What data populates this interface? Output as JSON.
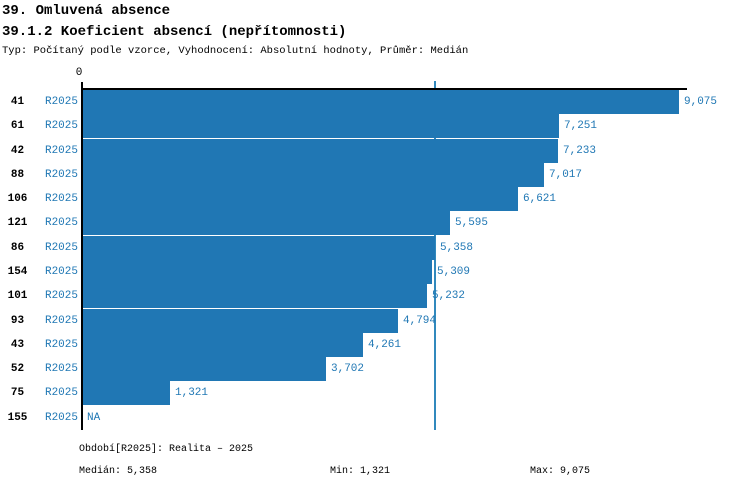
{
  "header": {
    "title_line1": "39. Omluvená absence",
    "title_line2": "39.1.2 Koeficient absencí (nepřítomnosti)",
    "subtitle": "Typ: Počítaný podle vzorce, Vyhodnocení: Absolutní hodnoty, Průměr: Medián"
  },
  "chart_data": {
    "type": "bar",
    "orientation": "horizontal",
    "origin_tick_label": "0",
    "xlim": [
      0,
      9200
    ],
    "grid": false,
    "series_label": "R2025",
    "categories": [
      "41",
      "61",
      "42",
      "88",
      "106",
      "121",
      "86",
      "154",
      "101",
      "93",
      "43",
      "52",
      "75",
      "155"
    ],
    "values": [
      9075,
      7251,
      7233,
      7017,
      6621,
      5595,
      5358,
      5309,
      5232,
      4794,
      4261,
      3702,
      1321,
      null
    ],
    "value_labels": [
      "9,075",
      "7,251",
      "7,233",
      "7,017",
      "6,621",
      "5,595",
      "5,358",
      "5,309",
      "5,232",
      "4,794",
      "4,261",
      "3,702",
      "1,321",
      "NA"
    ],
    "median_value": 5358,
    "colors": {
      "bar": "#2077b4",
      "median_line": "#3189bd",
      "value_text": "#1f77b4",
      "series_text": "#1f77b4",
      "category_text": "#000000",
      "axis": "#000000"
    }
  },
  "footer": {
    "period_label": "Období[R2025]: Realita – 2025",
    "median_label": "Medián: 5,358",
    "min_label": "Min: 1,321",
    "max_label": "Max: 9,075"
  }
}
